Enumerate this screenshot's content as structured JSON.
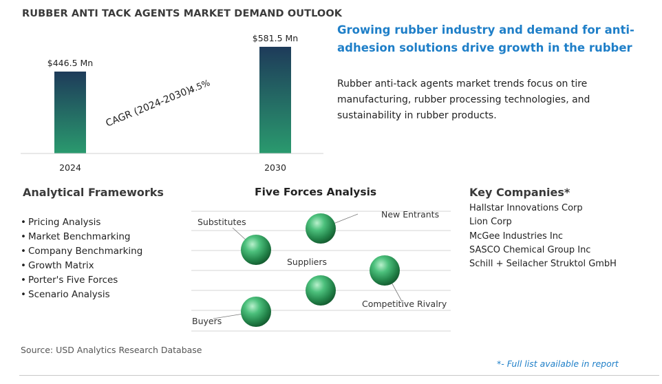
{
  "chart_data": {
    "type": "bar",
    "title": "RUBBER ANTI TACK AGENTS MARKET DEMAND OUTLOOK",
    "categories": [
      "2024",
      "2030"
    ],
    "values": [
      446.5,
      581.5
    ],
    "value_labels": [
      "$446.5 Mn",
      "$581.5 Mn"
    ],
    "unit": "Mn",
    "ylim": [
      0,
      600
    ],
    "xlabel": "",
    "ylabel": "",
    "grid": false,
    "cagr_label": "CAGR (2024-2030):",
    "cagr_value": "4.5%",
    "bar_colors": [
      "#2a9a6e",
      "#1e3b5a"
    ]
  },
  "headline": "Growing rubber industry and demand for anti-adhesion solutions drive growth in the rubber anti-tack agents market",
  "summary": "Rubber anti-tack agents market trends focus on tire manufacturing, rubber processing technologies, and sustainability in rubber products.",
  "analytical_frameworks": {
    "title": "Analytical Frameworks",
    "items": [
      "Pricing Analysis",
      "Market Benchmarking",
      "Company Benchmarking",
      "Growth Matrix",
      "Porter's Five Forces",
      "Scenario Analysis"
    ]
  },
  "five_forces": {
    "title": "Five Forces Analysis",
    "forces": [
      "Substitutes",
      "New Entrants",
      "Suppliers",
      "Competitive Rivalry",
      "Buyers"
    ]
  },
  "key_companies": {
    "title": "Key Companies*",
    "items": [
      "Hallstar Innovations Corp",
      "Lion Corp",
      "McGee Industries Inc",
      "SASCO Chemical Group Inc",
      "Schill + Seilacher Struktol GmbH"
    ]
  },
  "source": "Source: USD Analytics Research Database",
  "footnote": "*- Full list available in report",
  "colors": {
    "accent_blue": "#1f7fc8",
    "sphere_green": "#2e9e5e"
  }
}
